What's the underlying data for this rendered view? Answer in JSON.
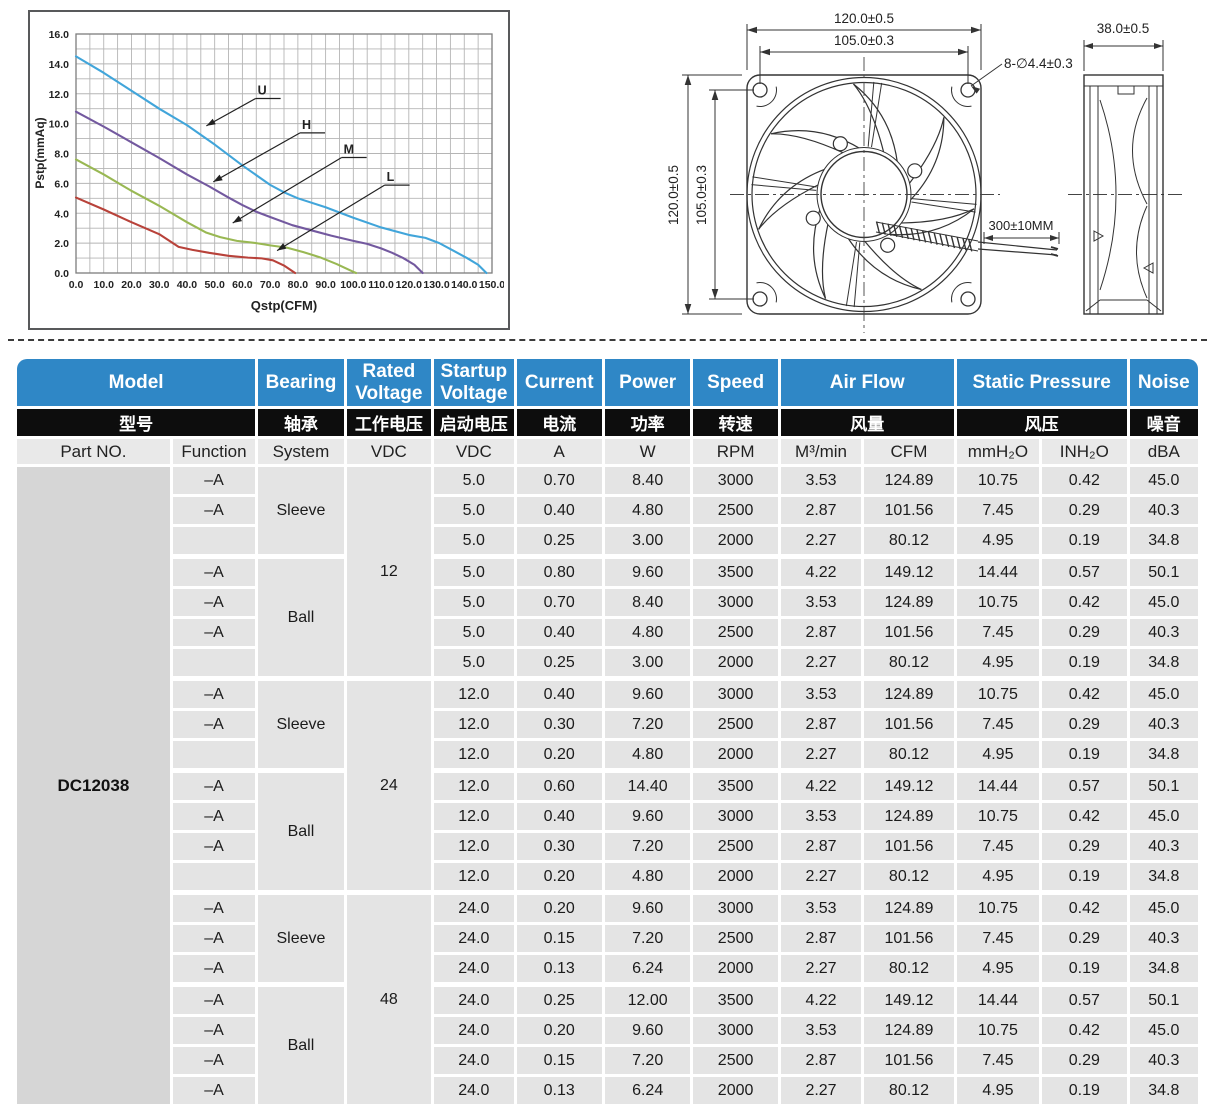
{
  "chart_data": {
    "type": "line",
    "title": "",
    "xlabel": "Qstp(CFM)",
    "ylabel": "Pstp(mmAq)",
    "xlim": [
      0,
      150
    ],
    "ylim": [
      0,
      16
    ],
    "x_major_step": 10,
    "x_minor_step": 5,
    "y_major_step": 2,
    "y_minor_step": 1,
    "grid": true,
    "series": [
      {
        "name": "U",
        "color": "#41a5da",
        "points": [
          [
            0,
            14.5
          ],
          [
            10,
            13.4
          ],
          [
            20,
            12.2
          ],
          [
            30,
            11.0
          ],
          [
            40,
            9.9
          ],
          [
            50,
            8.6
          ],
          [
            60,
            7.2
          ],
          [
            70,
            5.9
          ],
          [
            75,
            5.4
          ],
          [
            80,
            5.0
          ],
          [
            90,
            4.4
          ],
          [
            100,
            3.7
          ],
          [
            110,
            3.05
          ],
          [
            120,
            2.55
          ],
          [
            126,
            2.35
          ],
          [
            131,
            2.0
          ],
          [
            136,
            1.5
          ],
          [
            141,
            1.0
          ],
          [
            145,
            0.55
          ],
          [
            148,
            0
          ]
        ]
      },
      {
        "name": "H",
        "color": "#73599f",
        "points": [
          [
            0,
            10.8
          ],
          [
            10,
            9.8
          ],
          [
            20,
            8.75
          ],
          [
            30,
            7.7
          ],
          [
            40,
            6.6
          ],
          [
            48,
            5.8
          ],
          [
            55,
            5.05
          ],
          [
            60,
            4.55
          ],
          [
            65,
            4.1
          ],
          [
            70,
            3.75
          ],
          [
            78,
            3.2
          ],
          [
            85,
            2.85
          ],
          [
            92,
            2.5
          ],
          [
            100,
            2.15
          ],
          [
            105,
            1.95
          ],
          [
            110,
            1.65
          ],
          [
            114,
            1.35
          ],
          [
            118,
            1.0
          ],
          [
            122,
            0.55
          ],
          [
            125,
            0
          ]
        ]
      },
      {
        "name": "M",
        "color": "#99b853",
        "points": [
          [
            0,
            7.6
          ],
          [
            10,
            6.6
          ],
          [
            20,
            5.5
          ],
          [
            30,
            4.5
          ],
          [
            40,
            3.4
          ],
          [
            47,
            2.7
          ],
          [
            52,
            2.4
          ],
          [
            58,
            2.15
          ],
          [
            65,
            2.0
          ],
          [
            70,
            1.85
          ],
          [
            76,
            1.7
          ],
          [
            82,
            1.4
          ],
          [
            88,
            1.05
          ],
          [
            94,
            0.6
          ],
          [
            100,
            0.08
          ],
          [
            101,
            0
          ]
        ]
      },
      {
        "name": "L",
        "color": "#b8423a",
        "points": [
          [
            0,
            5.05
          ],
          [
            10,
            4.25
          ],
          [
            20,
            3.4
          ],
          [
            30,
            2.6
          ],
          [
            37,
            1.75
          ],
          [
            42,
            1.55
          ],
          [
            48,
            1.35
          ],
          [
            55,
            1.15
          ],
          [
            62,
            1.03
          ],
          [
            67,
            0.98
          ],
          [
            71,
            0.85
          ],
          [
            75,
            0.5
          ],
          [
            79,
            0
          ]
        ]
      }
    ],
    "labels": [
      {
        "text": "U",
        "x": 65.5,
        "y": 11.95,
        "tip_x": 47,
        "tip_y": 9.85
      },
      {
        "text": "H",
        "x": 81.5,
        "y": 9.65,
        "tip_x": 49.5,
        "tip_y": 6.1
      },
      {
        "text": "M",
        "x": 96.5,
        "y": 8.0,
        "tip_x": 56.5,
        "tip_y": 3.35
      },
      {
        "text": "L",
        "x": 112,
        "y": 6.15,
        "tip_x": 72.5,
        "tip_y": 1.5
      }
    ]
  },
  "drawing": {
    "dim_width": "120.0±0.5",
    "dim_hole_pitch_h": "105.0±0.3",
    "dim_height": "120.0±0.5",
    "dim_hole_pitch_v": "105.0±0.3",
    "dim_holes": "8-∅4.4±0.3",
    "dim_wire": "300±10MM",
    "dim_depth": "38.0±0.5"
  },
  "table": {
    "header_row1": [
      "Model",
      "Bearing",
      "Rated Voltage",
      "Startup Voltage",
      "Current",
      "Power",
      "Speed",
      "Air Flow",
      "Static Pressure",
      "Noise"
    ],
    "header_row2": [
      "型号",
      "轴承",
      "工作电压",
      "启动电压",
      "电流",
      "功率",
      "转速",
      "风量",
      "风压",
      "噪音"
    ],
    "header_row3": [
      "Part NO.",
      "Function",
      "System",
      "VDC",
      "VDC",
      "A",
      "W",
      "RPM",
      "M³/min",
      "CFM",
      "mmH₂O",
      "INH₂O",
      "dBA"
    ],
    "part_no": "DC12038",
    "groups": [
      {
        "rated_voltage": "12",
        "bearings": [
          {
            "system": "Sleeve",
            "rows": [
              {
                "function": "–A",
                "values": [
                  "5.0",
                  "0.70",
                  "8.40",
                  "3000",
                  "3.53",
                  "124.89",
                  "10.75",
                  "0.42",
                  "45.0"
                ]
              },
              {
                "function": "–A",
                "values": [
                  "5.0",
                  "0.40",
                  "4.80",
                  "2500",
                  "2.87",
                  "101.56",
                  "7.45",
                  "0.29",
                  "40.3"
                ]
              },
              {
                "function": "",
                "values": [
                  "5.0",
                  "0.25",
                  "3.00",
                  "2000",
                  "2.27",
                  "80.12",
                  "4.95",
                  "0.19",
                  "34.8"
                ]
              }
            ]
          },
          {
            "system": "Ball",
            "rows": [
              {
                "function": "–A",
                "values": [
                  "5.0",
                  "0.80",
                  "9.60",
                  "3500",
                  "4.22",
                  "149.12",
                  "14.44",
                  "0.57",
                  "50.1"
                ]
              },
              {
                "function": "–A",
                "values": [
                  "5.0",
                  "0.70",
                  "8.40",
                  "3000",
                  "3.53",
                  "124.89",
                  "10.75",
                  "0.42",
                  "45.0"
                ]
              },
              {
                "function": "–A",
                "values": [
                  "5.0",
                  "0.40",
                  "4.80",
                  "2500",
                  "2.87",
                  "101.56",
                  "7.45",
                  "0.29",
                  "40.3"
                ]
              },
              {
                "function": "",
                "values": [
                  "5.0",
                  "0.25",
                  "3.00",
                  "2000",
                  "2.27",
                  "80.12",
                  "4.95",
                  "0.19",
                  "34.8"
                ]
              }
            ]
          }
        ]
      },
      {
        "rated_voltage": "24",
        "bearings": [
          {
            "system": "Sleeve",
            "rows": [
              {
                "function": "–A",
                "values": [
                  "12.0",
                  "0.40",
                  "9.60",
                  "3000",
                  "3.53",
                  "124.89",
                  "10.75",
                  "0.42",
                  "45.0"
                ]
              },
              {
                "function": "–A",
                "values": [
                  "12.0",
                  "0.30",
                  "7.20",
                  "2500",
                  "2.87",
                  "101.56",
                  "7.45",
                  "0.29",
                  "40.3"
                ]
              },
              {
                "function": "",
                "values": [
                  "12.0",
                  "0.20",
                  "4.80",
                  "2000",
                  "2.27",
                  "80.12",
                  "4.95",
                  "0.19",
                  "34.8"
                ]
              }
            ]
          },
          {
            "system": "Ball",
            "rows": [
              {
                "function": "–A",
                "values": [
                  "12.0",
                  "0.60",
                  "14.40",
                  "3500",
                  "4.22",
                  "149.12",
                  "14.44",
                  "0.57",
                  "50.1"
                ]
              },
              {
                "function": "–A",
                "values": [
                  "12.0",
                  "0.40",
                  "9.60",
                  "3000",
                  "3.53",
                  "124.89",
                  "10.75",
                  "0.42",
                  "45.0"
                ]
              },
              {
                "function": "–A",
                "values": [
                  "12.0",
                  "0.30",
                  "7.20",
                  "2500",
                  "2.87",
                  "101.56",
                  "7.45",
                  "0.29",
                  "40.3"
                ]
              },
              {
                "function": "",
                "values": [
                  "12.0",
                  "0.20",
                  "4.80",
                  "2000",
                  "2.27",
                  "80.12",
                  "4.95",
                  "0.19",
                  "34.8"
                ]
              }
            ]
          }
        ]
      },
      {
        "rated_voltage": "48",
        "bearings": [
          {
            "system": "Sleeve",
            "rows": [
              {
                "function": "–A",
                "values": [
                  "24.0",
                  "0.20",
                  "9.60",
                  "3000",
                  "3.53",
                  "124.89",
                  "10.75",
                  "0.42",
                  "45.0"
                ]
              },
              {
                "function": "–A",
                "values": [
                  "24.0",
                  "0.15",
                  "7.20",
                  "2500",
                  "2.87",
                  "101.56",
                  "7.45",
                  "0.29",
                  "40.3"
                ]
              },
              {
                "function": "–A",
                "values": [
                  "24.0",
                  "0.13",
                  "6.24",
                  "2000",
                  "2.27",
                  "80.12",
                  "4.95",
                  "0.19",
                  "34.8"
                ]
              }
            ]
          },
          {
            "system": "Ball",
            "rows": [
              {
                "function": "–A",
                "values": [
                  "24.0",
                  "0.25",
                  "12.00",
                  "3500",
                  "4.22",
                  "149.12",
                  "14.44",
                  "0.57",
                  "50.1"
                ]
              },
              {
                "function": "–A",
                "values": [
                  "24.0",
                  "0.20",
                  "9.60",
                  "3000",
                  "3.53",
                  "124.89",
                  "10.75",
                  "0.42",
                  "45.0"
                ]
              },
              {
                "function": "–A",
                "values": [
                  "24.0",
                  "0.15",
                  "7.20",
                  "2500",
                  "2.87",
                  "101.56",
                  "7.45",
                  "0.29",
                  "40.3"
                ]
              },
              {
                "function": "–A",
                "values": [
                  "24.0",
                  "0.13",
                  "6.24",
                  "2000",
                  "2.27",
                  "80.12",
                  "4.95",
                  "0.19",
                  "34.8"
                ]
              }
            ]
          }
        ]
      }
    ]
  }
}
